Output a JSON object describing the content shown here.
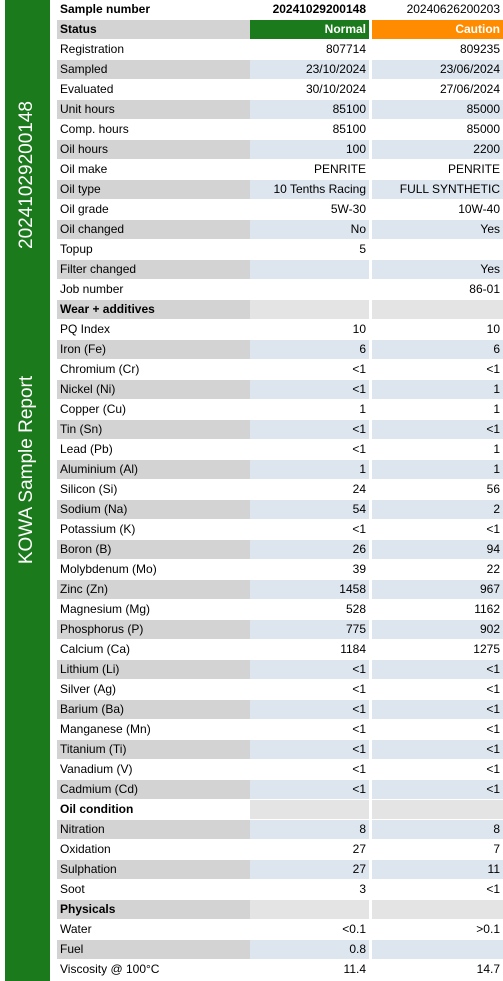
{
  "sidebar": {
    "title": "KOWA Sample Report",
    "sample": "20241029200148"
  },
  "table": {
    "rows": [
      [
        "Sample number",
        "20241029200148",
        "20240626200203"
      ],
      [
        "Status",
        "Normal",
        "Caution"
      ],
      [
        "Registration",
        "807714",
        "809235"
      ],
      [
        "Sampled",
        "23/10/2024",
        "23/06/2024"
      ],
      [
        "Evaluated",
        "30/10/2024",
        "27/06/2024"
      ],
      [
        "Unit hours",
        "85100",
        "85000"
      ],
      [
        "Comp. hours",
        "85100",
        "85000"
      ],
      [
        "Oil hours",
        "100",
        "2200"
      ],
      [
        "Oil make",
        "PENRITE",
        "PENRITE"
      ],
      [
        "Oil type",
        "10 Tenths Racing",
        "FULL SYNTHETIC"
      ],
      [
        "Oil grade",
        "5W-30",
        "10W-40"
      ],
      [
        "Oil changed",
        "No",
        "Yes"
      ],
      [
        "Topup",
        "5",
        null
      ],
      [
        "Filter changed",
        null,
        "Yes"
      ],
      [
        "Job number",
        null,
        "86-01"
      ],
      [
        "Wear + additives"
      ],
      [
        "PQ Index",
        "10",
        "10"
      ],
      [
        "Iron (Fe)",
        "6",
        "6"
      ],
      [
        "Chromium (Cr)",
        "<1",
        "<1"
      ],
      [
        "Nickel (Ni)",
        "<1",
        "1"
      ],
      [
        "Copper (Cu)",
        "1",
        "1"
      ],
      [
        "Tin (Sn)",
        "<1",
        "<1"
      ],
      [
        "Lead (Pb)",
        "<1",
        "1"
      ],
      [
        "Aluminium (Al)",
        "1",
        "1"
      ],
      [
        "Silicon (Si)",
        "24",
        "56"
      ],
      [
        "Sodium (Na)",
        "54",
        "2"
      ],
      [
        "Potassium (K)",
        "<1",
        "<1"
      ],
      [
        "Boron (B)",
        "26",
        "94"
      ],
      [
        "Molybdenum (Mo)",
        "39",
        "22"
      ],
      [
        "Zinc (Zn)",
        "1458",
        "967"
      ],
      [
        "Magnesium (Mg)",
        "528",
        "1162"
      ],
      [
        "Phosphorus (P)",
        "775",
        "902"
      ],
      [
        "Calcium (Ca)",
        "1184",
        "1275"
      ],
      [
        "Lithium (Li)",
        "<1",
        "<1"
      ],
      [
        "Silver (Ag)",
        "<1",
        "<1"
      ],
      [
        "Barium (Ba)",
        "<1",
        "<1"
      ],
      [
        "Manganese (Mn)",
        "<1",
        "<1"
      ],
      [
        "Titanium (Ti)",
        "<1",
        "<1"
      ],
      [
        "Vanadium (V)",
        "<1",
        "<1"
      ],
      [
        "Cadmium (Cd)",
        "<1",
        "<1"
      ],
      [
        "Oil condition"
      ],
      [
        "Nitration",
        "8",
        "8"
      ],
      [
        "Oxidation",
        "27",
        "7"
      ],
      [
        "Sulphation",
        "27",
        "11"
      ],
      [
        "Soot",
        "3",
        "<1"
      ],
      [
        "Physicals"
      ],
      [
        "Water",
        "<0.1",
        ">0.1"
      ],
      [
        "Fuel",
        "0.8",
        null
      ],
      [
        "Viscosity @ 100°C",
        "11.4",
        "14.7"
      ]
    ]
  }
}
